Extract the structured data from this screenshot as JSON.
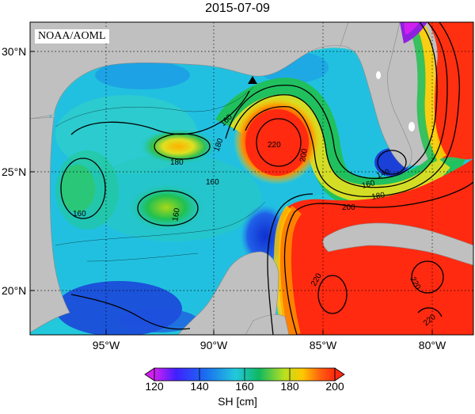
{
  "title": "2015-07-09",
  "credit": "NOAA/AOML",
  "lat_labels": [
    "30°N",
    "25°N",
    "20°N"
  ],
  "lon_labels": [
    "95°W",
    "90°W",
    "85°W",
    "80°W"
  ],
  "colorbar": {
    "ticks": [
      "120",
      "140",
      "160",
      "180",
      "200"
    ],
    "title": "SH [cm]"
  },
  "contour_labels": [
    "160",
    "180",
    "160",
    "180",
    "160",
    "160",
    "220",
    "200",
    "180",
    "160",
    "140",
    "200",
    "220",
    "220",
    "220"
  ],
  "colors": {
    "land": "#c0c0c0",
    "ocean_low": "#1a40d8",
    "ocean_mid": "#22c8dc",
    "ocean_high": "#ff2a10"
  }
}
